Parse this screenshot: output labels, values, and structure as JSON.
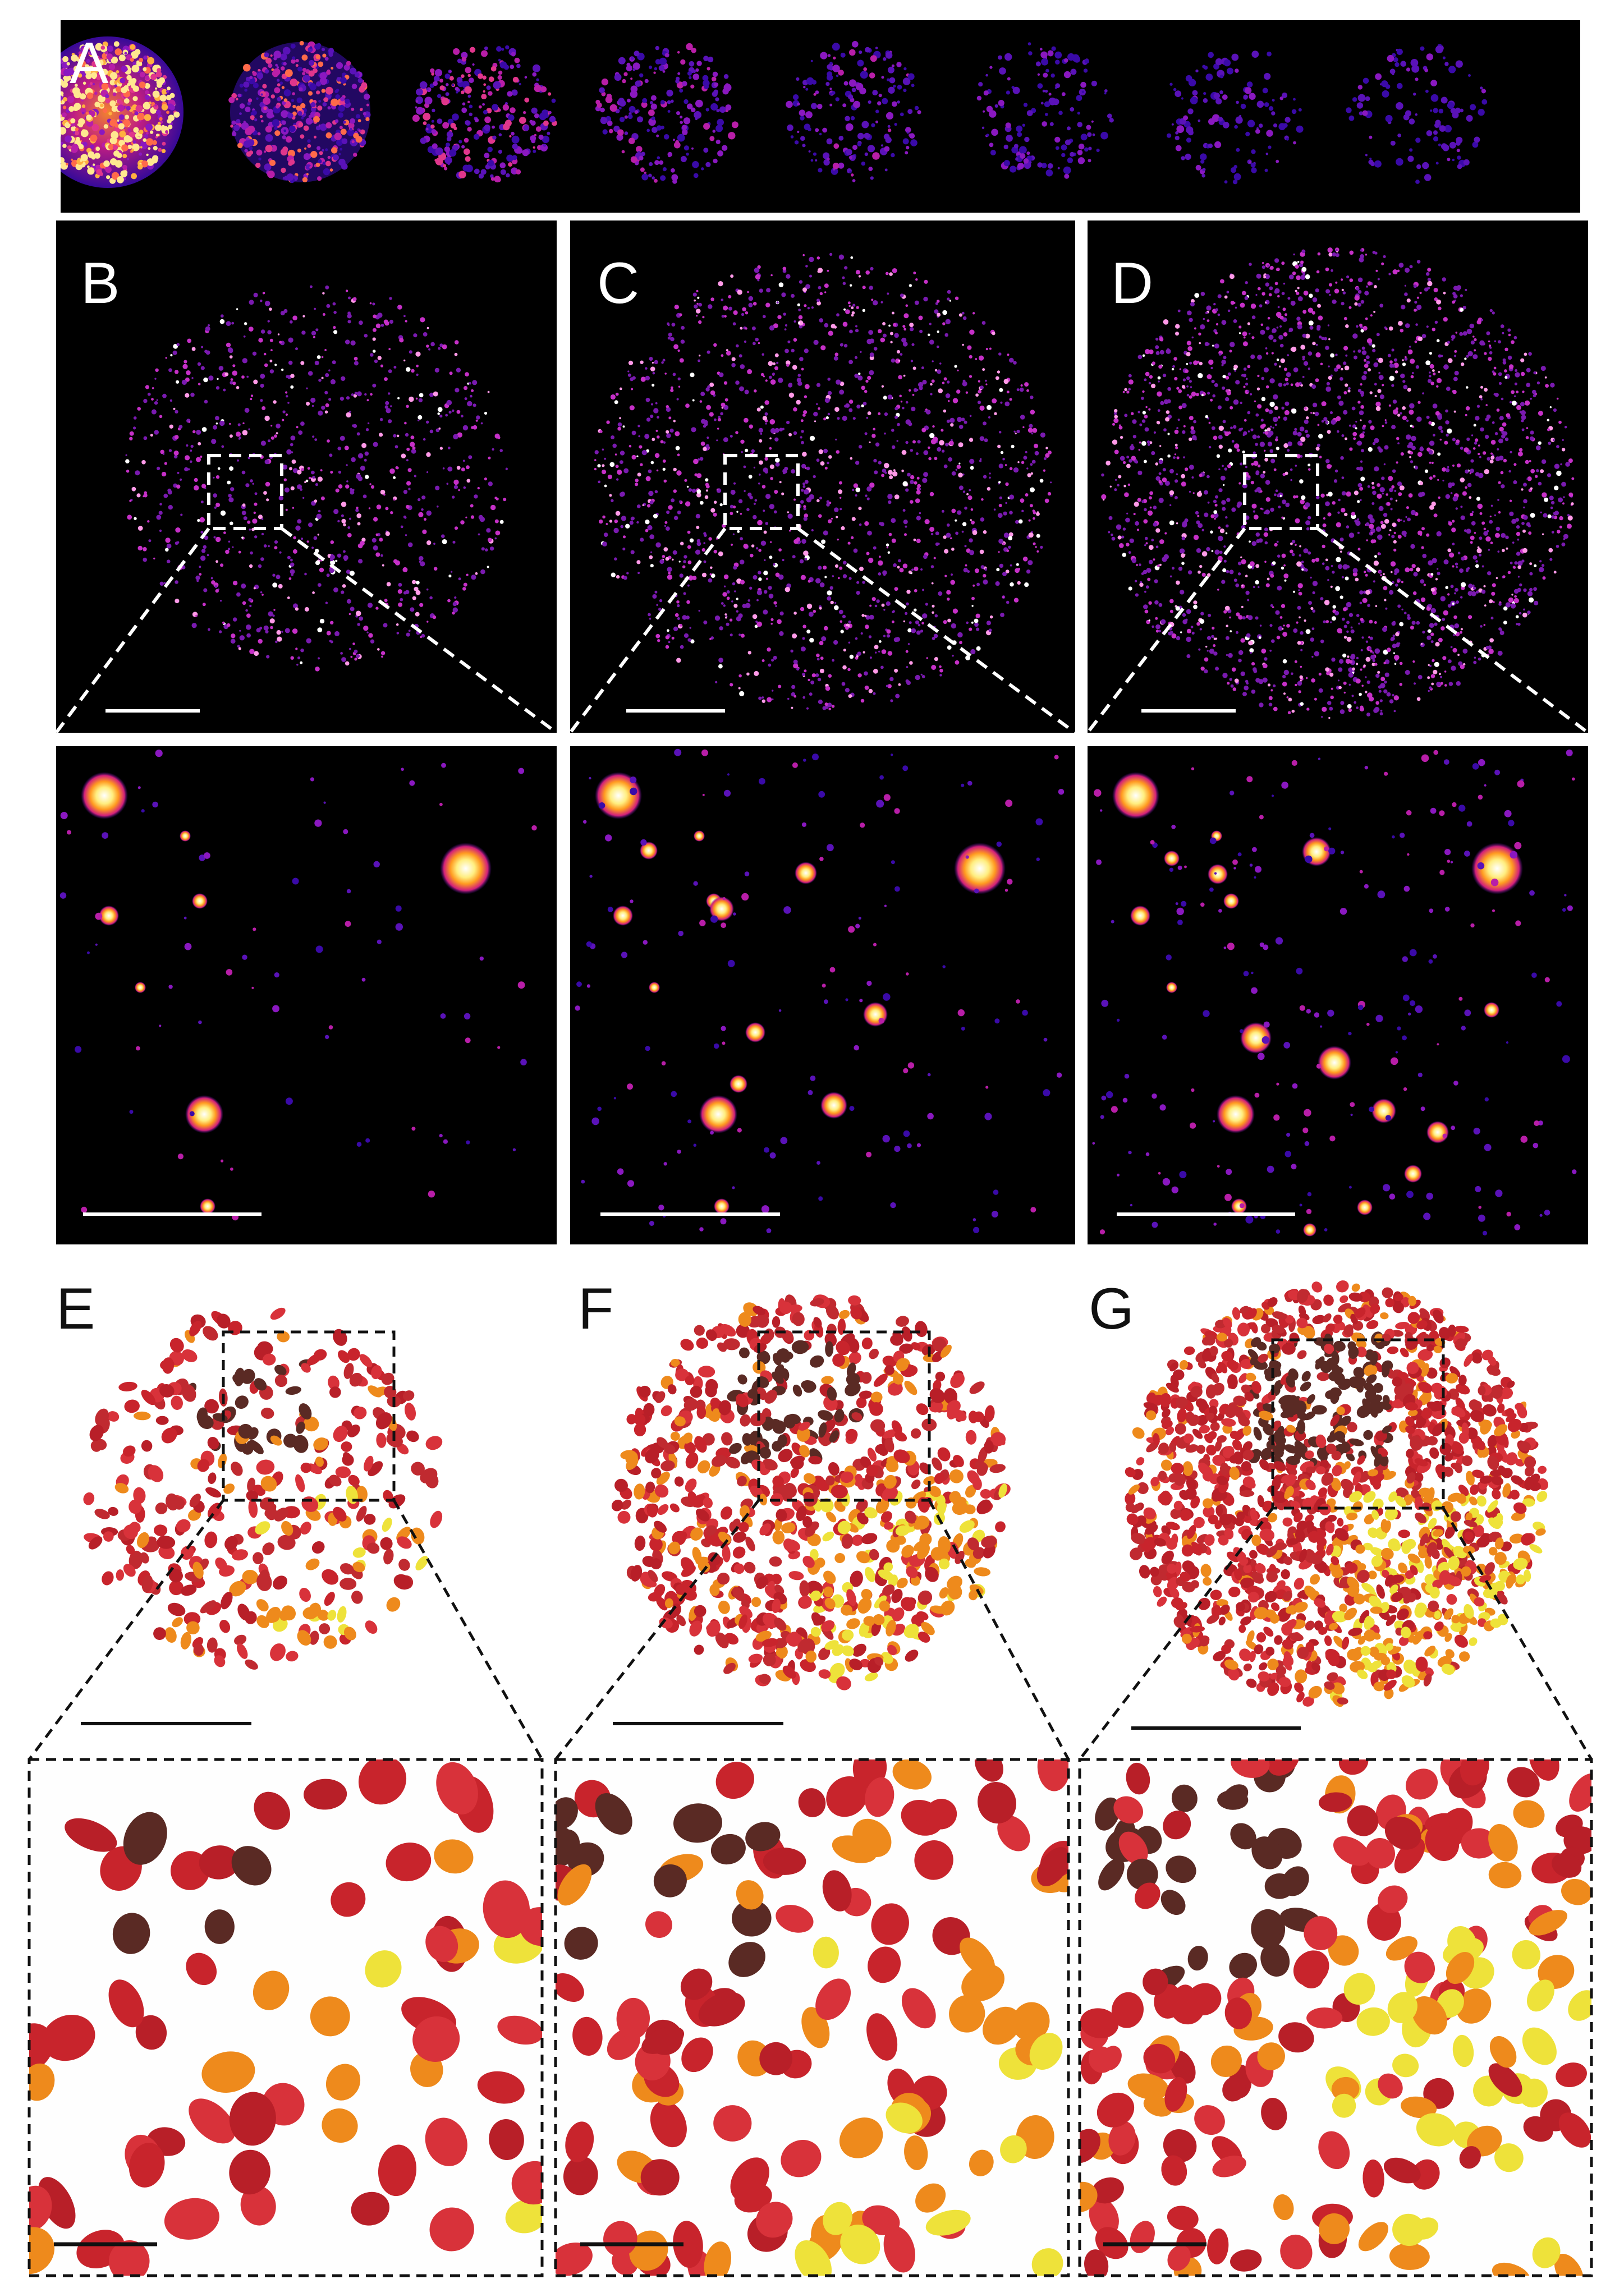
{
  "figure": {
    "panel_labels": {
      "A": "A",
      "B": "B",
      "C": "C",
      "D": "D",
      "E": "E",
      "F": "F",
      "G": "G"
    },
    "colormap": "fire",
    "colors": {
      "background_dark": "#000000",
      "background_light": "#fefefe",
      "blob_red": "#c8242c",
      "blob_darkbrown": "#5a2a24",
      "blob_orange": "#ee8a1c",
      "blob_yellow": "#eee23a",
      "label_dark": "#ffffff",
      "label_light": "#000000"
    }
  }
}
